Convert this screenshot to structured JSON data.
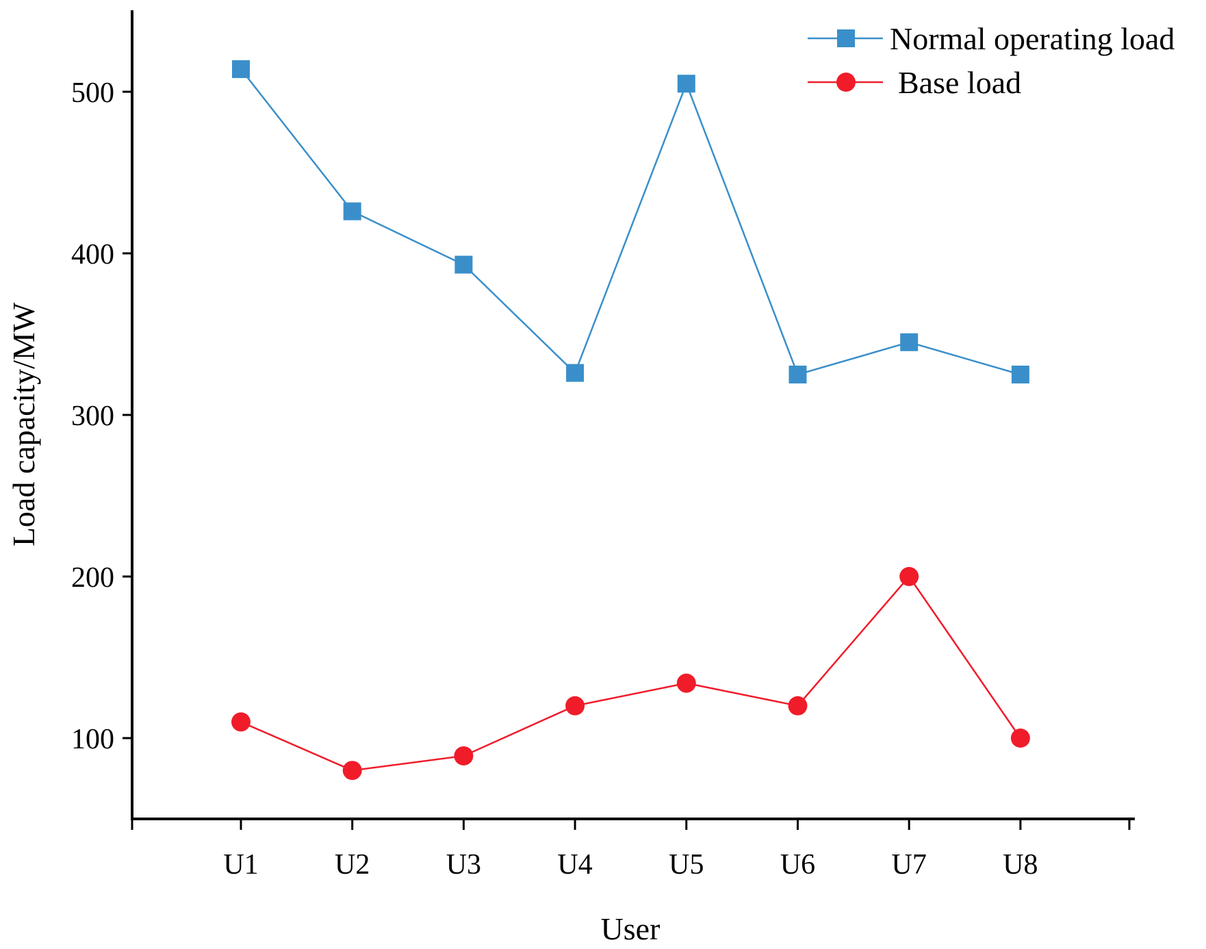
{
  "chart_data": {
    "type": "line",
    "title": "",
    "xlabel": "User",
    "ylabel": "Load capacity/MW",
    "categories": [
      "U1",
      "U2",
      "U3",
      "U4",
      "U5",
      "U6",
      "U7",
      "U8"
    ],
    "ylim": [
      50,
      550
    ],
    "yticks": [
      "100",
      "200",
      "300",
      "400",
      "500"
    ],
    "yticks_values": [
      100,
      200,
      300,
      400,
      500
    ],
    "grid": false,
    "legend_position": "top-right",
    "series": [
      {
        "name": "Normal operating load",
        "marker": "square",
        "color": "#3a8fca",
        "values": [
          514,
          426,
          393,
          326,
          505,
          325,
          345,
          325
        ]
      },
      {
        "name": "Base load",
        "marker": "circle",
        "color": "#f01c2a",
        "values": [
          110,
          80,
          89,
          120,
          134,
          120,
          200,
          100
        ]
      }
    ]
  }
}
